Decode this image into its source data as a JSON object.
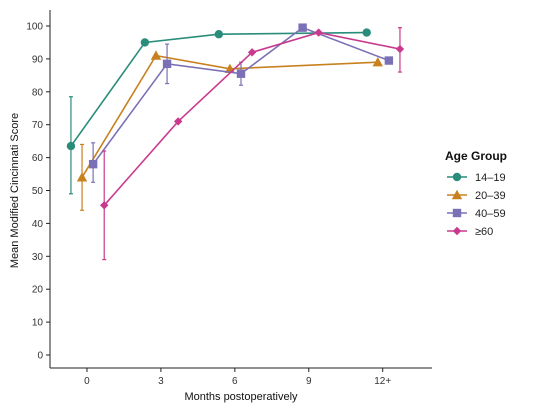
{
  "chart_data": {
    "type": "line",
    "title": "",
    "xlabel": "Months postoperatively",
    "ylabel": "Mean Modified Cincinnati Score",
    "x_categories": [
      "0",
      "3",
      "6",
      "9",
      "12+"
    ],
    "ylim": [
      0,
      100
    ],
    "y_ticks": [
      "0",
      "10",
      "20",
      "30",
      "40",
      "50",
      "60",
      "70",
      "80",
      "90",
      "100"
    ],
    "grid": false,
    "legend_position": "right",
    "legend_title": "Age Group",
    "series": [
      {
        "name": "14–19",
        "color": "#2a8c7b",
        "marker": "circle",
        "points": [
          {
            "x": -0.65,
            "y": 63.5,
            "lo": 49,
            "hi": 78.5
          },
          {
            "x": 2.35,
            "y": 95
          },
          {
            "x": 5.35,
            "y": 97.5
          },
          {
            "x": 11.35,
            "y": 98
          }
        ]
      },
      {
        "name": "20–39",
        "color": "#c8811f",
        "marker": "triangle",
        "points": [
          {
            "x": -0.2,
            "y": 54,
            "lo": 44,
            "hi": 64
          },
          {
            "x": 2.8,
            "y": 91
          },
          {
            "x": 5.8,
            "y": 87
          },
          {
            "x": 11.8,
            "y": 89
          }
        ]
      },
      {
        "name": "40–59",
        "color": "#7a70b5",
        "marker": "square",
        "points": [
          {
            "x": 0.25,
            "y": 58,
            "lo": 52.5,
            "hi": 64.5
          },
          {
            "x": 3.25,
            "y": 88.5,
            "lo": 82.5,
            "hi": 94.5
          },
          {
            "x": 6.25,
            "y": 85.5,
            "lo": 82,
            "hi": 89
          },
          {
            "x": 8.75,
            "y": 99.5
          },
          {
            "x": 12.25,
            "y": 89.5
          }
        ]
      },
      {
        "name": "≥60",
        "color": "#c93a8e",
        "marker": "diamond",
        "points": [
          {
            "x": 0.7,
            "y": 45.5,
            "lo": 29,
            "hi": 62
          },
          {
            "x": 3.7,
            "y": 71
          },
          {
            "x": 6.7,
            "y": 92
          },
          {
            "x": 9.4,
            "y": 98
          },
          {
            "x": 12.7,
            "y": 93,
            "lo": 86,
            "hi": 99.5
          }
        ]
      }
    ]
  }
}
